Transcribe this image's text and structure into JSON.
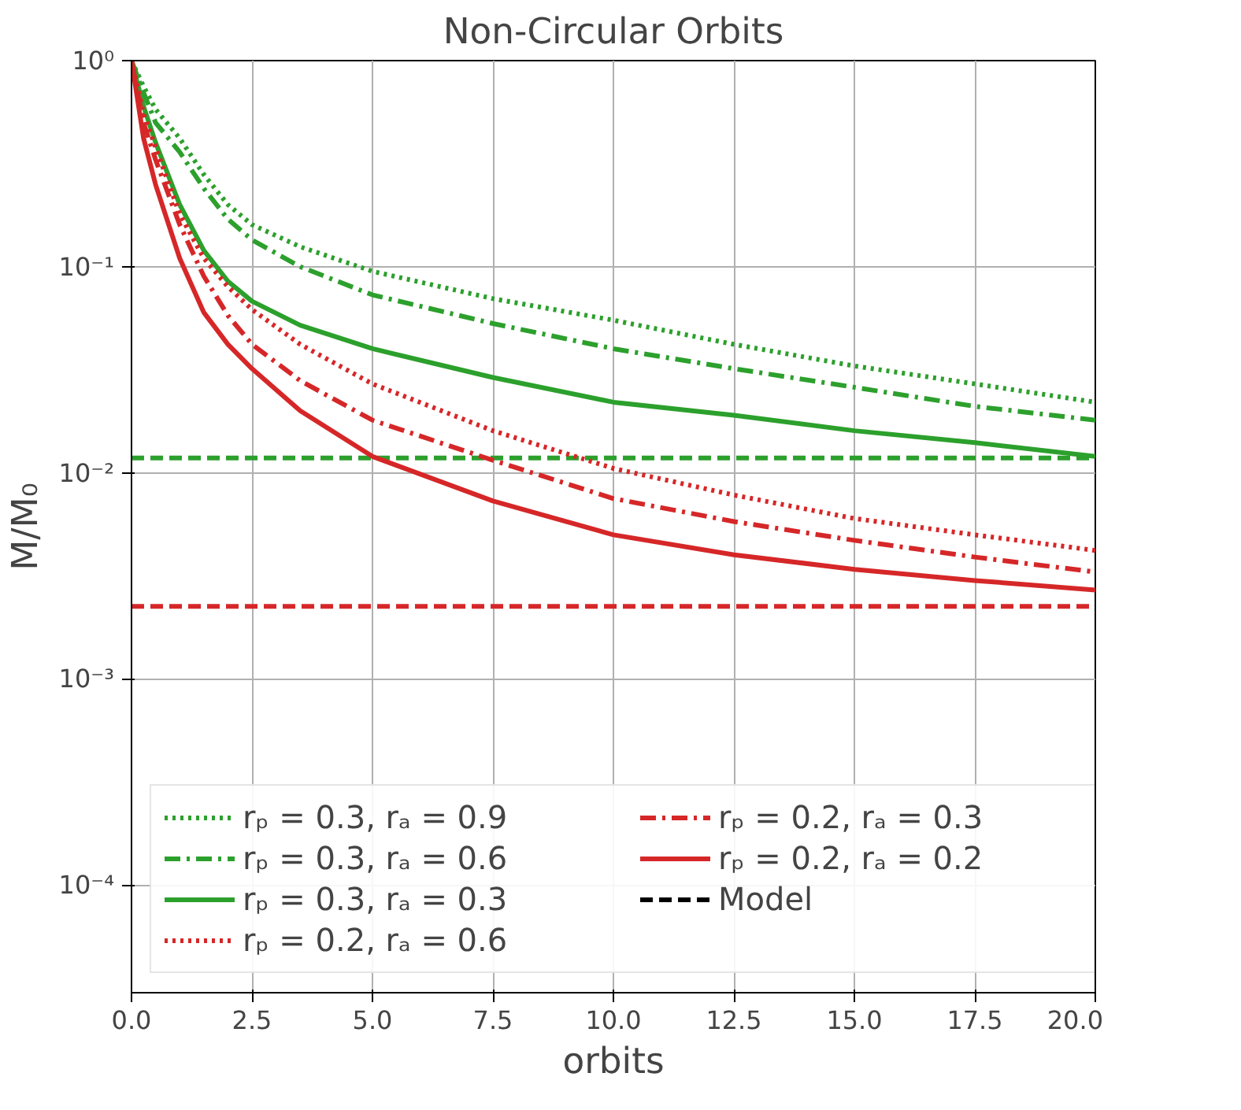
{
  "chart_data": {
    "type": "line",
    "title": "Non-Circular Orbits",
    "xlabel": "orbits",
    "ylabel": "M/M₀",
    "log": "y",
    "grid": true,
    "legend": "bottom left",
    "x": [
      0,
      0.25,
      0.5,
      1,
      1.5,
      2,
      2.5,
      3.5,
      5,
      7.5,
      10,
      12.5,
      15,
      17.5,
      20
    ],
    "xlim": [
      0,
      20
    ],
    "ylim": [
      3e-05,
      1
    ],
    "xticks": [
      {
        "value": 0,
        "label": "0.0"
      },
      {
        "value": 2.5,
        "label": "2.5"
      },
      {
        "value": 5,
        "label": "5.0"
      },
      {
        "value": 7.5,
        "label": "7.5"
      },
      {
        "value": 10,
        "label": "10.0"
      },
      {
        "value": 12.5,
        "label": "12.5"
      },
      {
        "value": 15,
        "label": "15.0"
      },
      {
        "value": 17.5,
        "label": "17.5"
      },
      {
        "value": 20,
        "label": "20.0"
      }
    ],
    "yticks": [
      {
        "value": 0.0001,
        "label": "10⁻⁴"
      },
      {
        "value": 0.001,
        "label": "10⁻³"
      },
      {
        "value": 0.01,
        "label": "10⁻²"
      },
      {
        "value": 0.1,
        "label": "10⁻¹"
      },
      {
        "value": 1,
        "label": "10⁰"
      }
    ],
    "series": [
      {
        "name": "rₚ = 0.3, rₐ = 0.9",
        "color": "#2ca02c",
        "line_style": "dotted",
        "values": [
          1,
          0.75,
          0.58,
          0.42,
          0.28,
          0.2,
          0.16,
          0.125,
          0.095,
          0.07,
          0.055,
          0.042,
          0.033,
          0.027,
          0.022
        ]
      },
      {
        "name": "rₚ = 0.3, rₐ = 0.6",
        "color": "#2ca02c",
        "line_style": "dashdot",
        "values": [
          1,
          0.7,
          0.5,
          0.36,
          0.24,
          0.17,
          0.135,
          0.1,
          0.073,
          0.053,
          0.04,
          0.032,
          0.026,
          0.021,
          0.018
        ]
      },
      {
        "name": "rₚ = 0.3, rₐ = 0.3",
        "color": "#2ca02c",
        "line_style": "solid",
        "values": [
          1,
          0.6,
          0.4,
          0.2,
          0.12,
          0.085,
          0.068,
          0.052,
          0.04,
          0.029,
          0.022,
          0.019,
          0.016,
          0.014,
          0.012
        ]
      },
      {
        "name": "rₚ = 0.2, rₐ = 0.6",
        "color": "#d62728",
        "line_style": "dotted",
        "values": [
          1,
          0.55,
          0.38,
          0.18,
          0.11,
          0.08,
          0.062,
          0.042,
          0.027,
          0.016,
          0.0105,
          0.0078,
          0.006,
          0.005,
          0.0042
        ]
      },
      {
        "name": "rₚ = 0.2, rₐ = 0.3",
        "color": "#d62728",
        "line_style": "dashdot",
        "values": [
          1,
          0.5,
          0.33,
          0.16,
          0.09,
          0.058,
          0.042,
          0.028,
          0.018,
          0.0115,
          0.0075,
          0.0058,
          0.0047,
          0.0039,
          0.0033
        ]
      },
      {
        "name": "rₚ = 0.2, rₐ = 0.2",
        "color": "#d62728",
        "line_style": "solid",
        "values": [
          1,
          0.42,
          0.25,
          0.11,
          0.06,
          0.042,
          0.032,
          0.02,
          0.012,
          0.0073,
          0.005,
          0.004,
          0.0034,
          0.003,
          0.0027
        ]
      },
      {
        "name": "Model",
        "color": "#000000",
        "line_style": "dashed",
        "values": [
          null,
          null,
          null,
          null,
          null,
          null,
          null,
          null,
          null,
          null,
          null,
          null,
          null,
          null,
          null
        ]
      }
    ],
    "ref_lines": [
      {
        "axis": "y",
        "value": 0.0118,
        "color": "#2ca02c",
        "line_style": "dashed"
      },
      {
        "axis": "y",
        "value": 0.00225,
        "color": "#d62728",
        "line_style": "dashed"
      }
    ]
  }
}
